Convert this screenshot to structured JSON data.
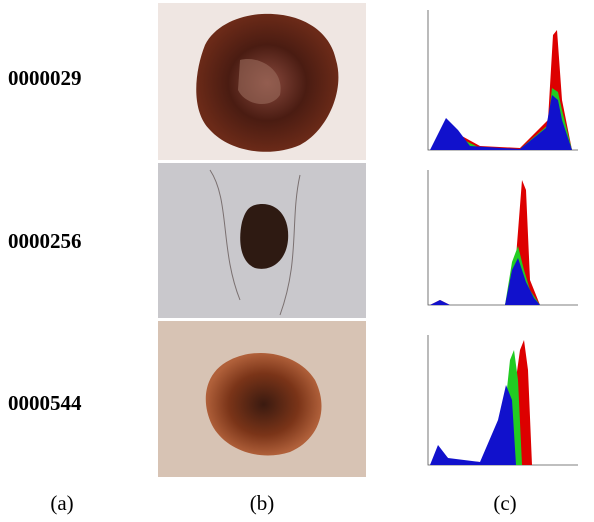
{
  "rows": [
    {
      "id": "0000029"
    },
    {
      "id": "0000256"
    },
    {
      "id": "0000544"
    }
  ],
  "panel_labels": [
    "(a)",
    "(b)",
    "(c)"
  ]
}
